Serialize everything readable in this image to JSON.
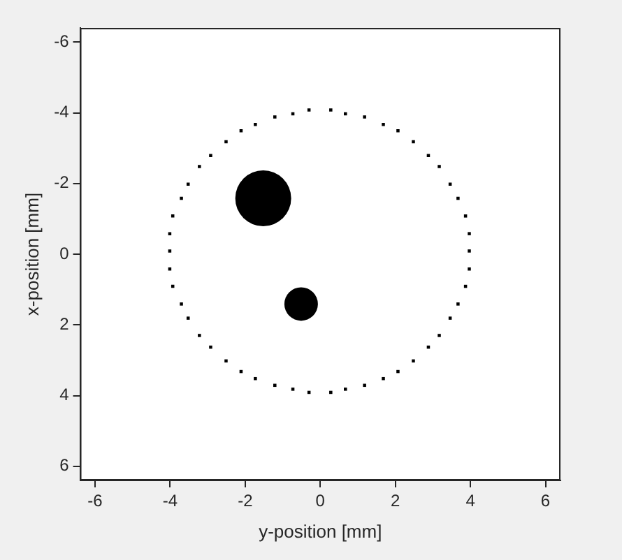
{
  "chart_data": {
    "type": "scatter",
    "xlabel": "y-position [mm]",
    "ylabel": "x-position [mm]",
    "xlim": [
      -6.4,
      6.4
    ],
    "ylim": [
      6.4,
      -6.4
    ],
    "xticks": [
      -6,
      -4,
      -2,
      0,
      2,
      4,
      6
    ],
    "yticks": [
      -6,
      -4,
      -2,
      0,
      2,
      4,
      6
    ],
    "grid": false,
    "legend": false,
    "series": [
      {
        "marker": "square",
        "color": "#000000",
        "x": [
          -0.3,
          0.28,
          -0.73,
          0.67,
          -1.21,
          1.18,
          -1.73,
          1.68,
          -2.11,
          2.07,
          -2.51,
          2.48,
          -2.92,
          2.88,
          -3.22,
          3.17,
          -3.52,
          3.46,
          -3.7,
          3.67,
          -3.93,
          3.87,
          -4.01,
          3.97,
          -4.01,
          3.97,
          -4.01,
          3.97,
          -3.93,
          3.87,
          -3.7,
          3.67,
          -3.52,
          3.46,
          -3.22,
          3.17,
          -2.92,
          2.88,
          -2.51,
          2.48,
          -2.11,
          2.07,
          -1.73,
          1.68,
          -1.21,
          1.18,
          -0.73,
          0.67,
          -0.3,
          0.28
        ],
        "values": [
          -4.08,
          -4.08,
          -3.97,
          -3.97,
          -3.88,
          -3.88,
          -3.67,
          -3.67,
          -3.49,
          -3.49,
          -3.18,
          -3.18,
          -2.79,
          -2.79,
          -2.48,
          -2.48,
          -1.98,
          -1.98,
          -1.58,
          -1.58,
          -1.08,
          -1.08,
          -0.58,
          -0.58,
          -0.09,
          -0.09,
          0.42,
          0.42,
          0.91,
          0.91,
          1.41,
          1.41,
          1.81,
          1.81,
          2.3,
          2.3,
          2.63,
          2.63,
          3.02,
          3.02,
          3.32,
          3.32,
          3.52,
          3.52,
          3.71,
          3.71,
          3.82,
          3.82,
          3.91,
          3.91
        ]
      },
      {
        "type": "bubble",
        "color": "#000000",
        "x": [
          -1.52,
          -0.51
        ],
        "values": [
          -1.58,
          1.41
        ],
        "sizes": [
          1,
          0.36
        ]
      }
    ]
  }
}
